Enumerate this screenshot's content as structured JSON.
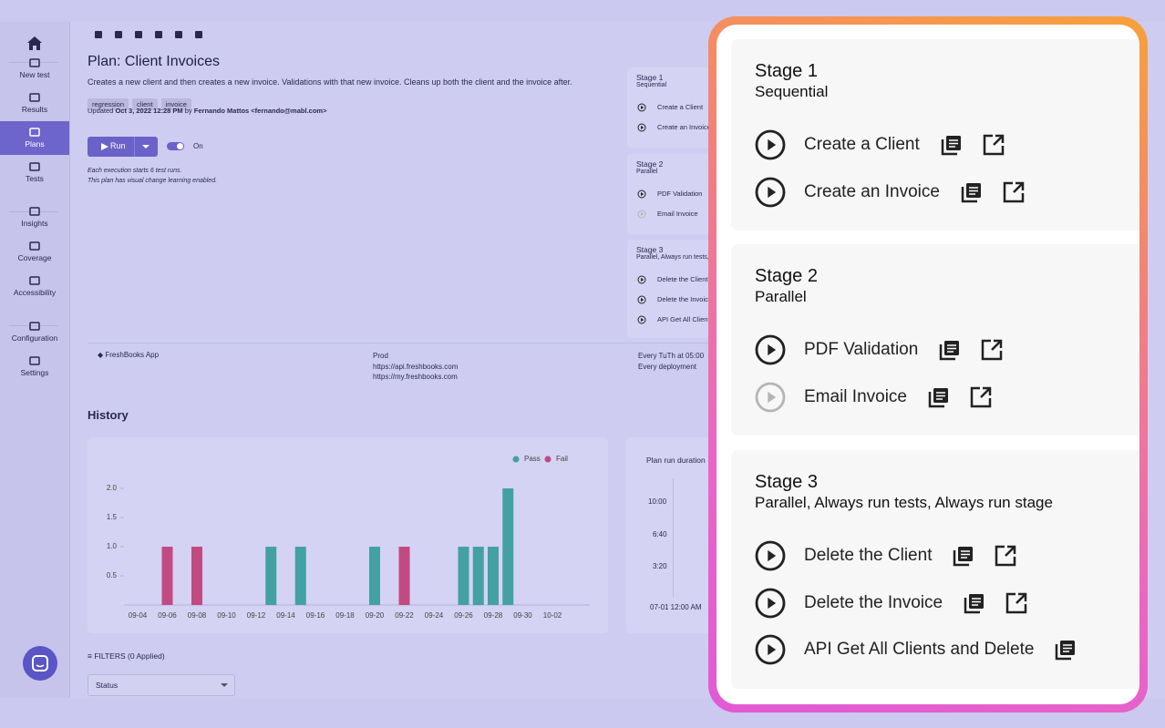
{
  "sidebar": {
    "items": [
      "New test",
      "Results",
      "Plans",
      "Tests",
      "Insights",
      "Coverage",
      "Accessibility",
      "Configuration",
      "Settings"
    ],
    "selected": 2
  },
  "plan": {
    "title": "Plan: Client Invoices",
    "description": "Creates a new client and then creates a new invoice. Validations with that new invoice. Cleans up both the client and the invoice after.",
    "tags": [
      "regression",
      "client",
      "invoice"
    ],
    "updated": {
      "prefix": "Updated",
      "date": "Oct 3, 2022 12:28 PM",
      "by": "by",
      "author": "Fernando Mattos <fernando@mabl.com>"
    },
    "run_button": "Run",
    "toggle": "On",
    "notes": [
      "Each execution starts 6 test runs.",
      "This plan has visual change learning enabled."
    ]
  },
  "environment": {
    "app": "FreshBooks App",
    "env": "Prod",
    "urls": [
      "https://api.freshbooks.com",
      "https://my.freshbooks.com"
    ],
    "schedule": [
      "Every TuTh at 05:00",
      "Every deployment"
    ]
  },
  "history": {
    "title": "History",
    "filters": {
      "label": "FILTERS",
      "applied": "(0 Applied)",
      "status": "Status"
    }
  },
  "chart_data": {
    "type": "bar",
    "categories": [
      "09-04",
      null,
      "09-06",
      null,
      "09-08",
      null,
      "09-10",
      null,
      "09-12",
      null,
      "09-14",
      null,
      "09-16",
      null,
      "09-18",
      null,
      "09-20",
      null,
      "09-22",
      null,
      "09-24",
      null,
      "09-26",
      null,
      "09-28",
      null,
      "09-30",
      null,
      "10-02"
    ],
    "series": [
      {
        "name": "Pass",
        "color": "#44a1a3",
        "values": [
          null,
          null,
          null,
          null,
          null,
          null,
          null,
          null,
          null,
          1,
          null,
          1,
          null,
          null,
          null,
          null,
          1,
          null,
          null,
          null,
          null,
          null,
          1,
          1,
          1,
          2,
          null,
          null,
          null
        ]
      },
      {
        "name": "Fail",
        "color": "#c24a82",
        "values": [
          null,
          null,
          1,
          null,
          1,
          null,
          null,
          null,
          null,
          null,
          null,
          null,
          null,
          null,
          null,
          null,
          null,
          null,
          1,
          null,
          null,
          null,
          null,
          null,
          null,
          null,
          null,
          null,
          null
        ]
      }
    ],
    "ylim": [
      0,
      2.2
    ],
    "yticks": [
      0.5,
      {
        "value": 1,
        "label": "1.0"
      },
      1.5,
      {
        "value": 2,
        "label": "2.0"
      }
    ],
    "legend": "top-right"
  },
  "duration_chart": {
    "title": "Plan run duration",
    "yticks": [
      "10:00",
      "6:40",
      "3:20"
    ],
    "x_label": "07-01 12:00 AM"
  },
  "stages": [
    {
      "name": "Stage 1",
      "mode": "Sequential",
      "tests": [
        {
          "name": "Create a Client",
          "enabled": true,
          "link": true
        },
        {
          "name": "Create an Invoice",
          "enabled": true,
          "link": true
        }
      ]
    },
    {
      "name": "Stage 2",
      "mode": "Parallel",
      "tests": [
        {
          "name": "PDF Validation",
          "enabled": true,
          "link": true
        },
        {
          "name": "Email Invoice",
          "enabled": false,
          "link": true
        }
      ]
    },
    {
      "name": "Stage 3",
      "mode": "Parallel, Always run tests, Always run stage",
      "tests": [
        {
          "name": "Delete the Client",
          "enabled": true,
          "link": true
        },
        {
          "name": "Delete the Invoice",
          "enabled": true,
          "link": true
        },
        {
          "name": "API Get All Clients and Delete",
          "enabled": true,
          "link": false
        }
      ]
    }
  ]
}
